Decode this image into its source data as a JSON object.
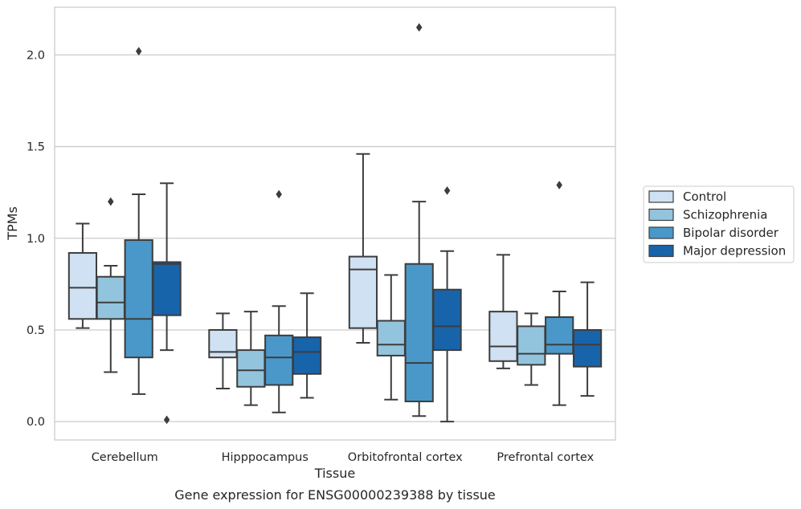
{
  "chart_data": {
    "type": "box",
    "xlabel": "Tissue",
    "ylabel": "TPMs",
    "caption": "Gene expression for ENSG00000239388 by tissue",
    "categories": [
      "Cerebellum",
      "Hipppocampus",
      "Orbitofrontal cortex",
      "Prefrontal cortex"
    ],
    "ylim": [
      -0.1,
      2.26
    ],
    "yticks": [
      0.0,
      0.5,
      1.0,
      1.5,
      2.0
    ],
    "ytick_labels": [
      "0.0",
      "0.5",
      "1.0",
      "1.5",
      "2.0"
    ],
    "grid": "horizontal",
    "legend_position": "right",
    "series": [
      {
        "name": "Control",
        "color": "#cfe1f2",
        "boxes": [
          {
            "whislo": 0.51,
            "q1": 0.56,
            "med": 0.73,
            "q3": 0.92,
            "whishi": 1.08,
            "fliers": []
          },
          {
            "whislo": 0.18,
            "q1": 0.35,
            "med": 0.38,
            "q3": 0.5,
            "whishi": 0.59,
            "fliers": []
          },
          {
            "whislo": 0.43,
            "q1": 0.51,
            "med": 0.83,
            "q3": 0.9,
            "whishi": 1.46,
            "fliers": []
          },
          {
            "whislo": 0.29,
            "q1": 0.33,
            "med": 0.41,
            "q3": 0.6,
            "whishi": 0.91,
            "fliers": []
          }
        ]
      },
      {
        "name": "Schizophrenia",
        "color": "#93c4de",
        "boxes": [
          {
            "whislo": 0.27,
            "q1": 0.56,
            "med": 0.65,
            "q3": 0.79,
            "whishi": 0.85,
            "fliers": [
              1.2
            ]
          },
          {
            "whislo": 0.09,
            "q1": 0.19,
            "med": 0.28,
            "q3": 0.39,
            "whishi": 0.6,
            "fliers": []
          },
          {
            "whislo": 0.12,
            "q1": 0.36,
            "med": 0.42,
            "q3": 0.55,
            "whishi": 0.8,
            "fliers": []
          },
          {
            "whislo": 0.2,
            "q1": 0.31,
            "med": 0.37,
            "q3": 0.52,
            "whishi": 0.59,
            "fliers": []
          }
        ]
      },
      {
        "name": "Bipolar disorder",
        "color": "#4a98c9",
        "boxes": [
          {
            "whislo": 0.15,
            "q1": 0.35,
            "med": 0.56,
            "q3": 0.99,
            "whishi": 1.24,
            "fliers": [
              2.02
            ]
          },
          {
            "whislo": 0.05,
            "q1": 0.2,
            "med": 0.35,
            "q3": 0.47,
            "whishi": 0.63,
            "fliers": [
              1.24
            ]
          },
          {
            "whislo": 0.03,
            "q1": 0.11,
            "med": 0.32,
            "q3": 0.86,
            "whishi": 1.2,
            "fliers": [
              2.15
            ]
          },
          {
            "whislo": 0.09,
            "q1": 0.37,
            "med": 0.42,
            "q3": 0.57,
            "whishi": 0.71,
            "fliers": [
              1.29
            ]
          }
        ]
      },
      {
        "name": "Major depression",
        "color": "#1764ab",
        "boxes": [
          {
            "whislo": 0.39,
            "q1": 0.58,
            "med": 0.86,
            "q3": 0.87,
            "whishi": 1.3,
            "fliers": [
              0.01
            ]
          },
          {
            "whislo": 0.13,
            "q1": 0.26,
            "med": 0.38,
            "q3": 0.46,
            "whishi": 0.7,
            "fliers": []
          },
          {
            "whislo": 0.0,
            "q1": 0.39,
            "med": 0.52,
            "q3": 0.72,
            "whishi": 0.93,
            "fliers": [
              1.26
            ]
          },
          {
            "whislo": 0.14,
            "q1": 0.3,
            "med": 0.42,
            "q3": 0.5,
            "whishi": 0.76,
            "fliers": []
          }
        ]
      }
    ]
  }
}
